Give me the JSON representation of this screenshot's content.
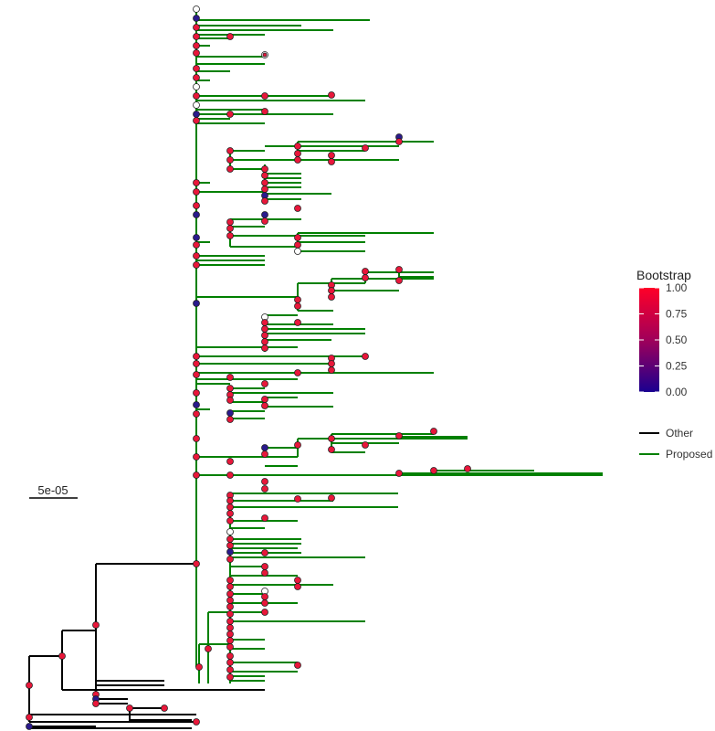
{
  "scale_bar": {
    "label": "5e-05"
  },
  "legend_bootstrap": {
    "title": "Bootstrap",
    "ticks": [
      "1.00",
      "0.75",
      "0.50",
      "0.25",
      "0.00"
    ],
    "color_high": "#ff0028",
    "color_low": "#1a0090"
  },
  "legend_groups": {
    "items": [
      {
        "label": "Other",
        "color": "#000000"
      },
      {
        "label": "Proposed",
        "color": "#008000"
      }
    ]
  },
  "colors": {
    "proposed": "#008000",
    "other": "#000000",
    "node_high": "#e8173a",
    "node_low": "#2a1a8c"
  }
}
